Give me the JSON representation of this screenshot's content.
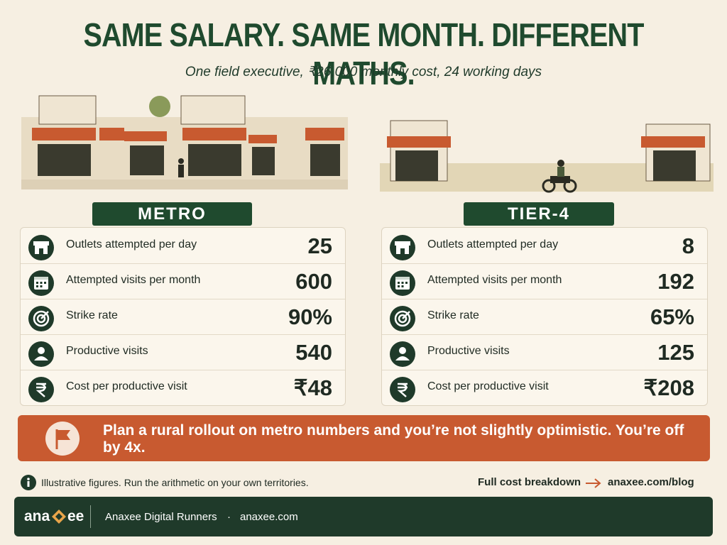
{
  "header": {
    "title": "SAME SALARY. SAME MONTH. DIFFERENT MATHS.",
    "subtitle": "One field executive, ₹26,000 monthly cost, 24 working days"
  },
  "panels": [
    {
      "label": "METRO",
      "rows": [
        {
          "label": "Outlets attempted per day",
          "value": "25"
        },
        {
          "label": "Attempted visits per month",
          "value": "600"
        },
        {
          "label": "Strike rate",
          "value": "90%"
        },
        {
          "label": "Productive visits",
          "value": "540"
        },
        {
          "label": "Cost per productive visit",
          "value": "₹48"
        }
      ]
    },
    {
      "label": "TIER-4",
      "rows": [
        {
          "label": "Outlets attempted per day",
          "value": "8"
        },
        {
          "label": "Attempted visits per month",
          "value": "192"
        },
        {
          "label": "Strike rate",
          "value": "65%"
        },
        {
          "label": "Productive visits",
          "value": "125"
        },
        {
          "label": "Cost per productive visit",
          "value": "₹208"
        }
      ]
    }
  ],
  "callout": {
    "text": "Plan a rural rollout on metro numbers and you’re not slightly optimistic. You’re off by 4x."
  },
  "note": {
    "text": "Illustrative figures. Run the arithmetic on your own territories.",
    "link_label": "Full cost breakdown",
    "link_url": "anaxee.com/blog"
  },
  "footer": {
    "logo_left": "ana",
    "logo_right": "ee",
    "name": "Anaxee Digital Runners",
    "separator": "·",
    "site": "anaxee.com"
  }
}
